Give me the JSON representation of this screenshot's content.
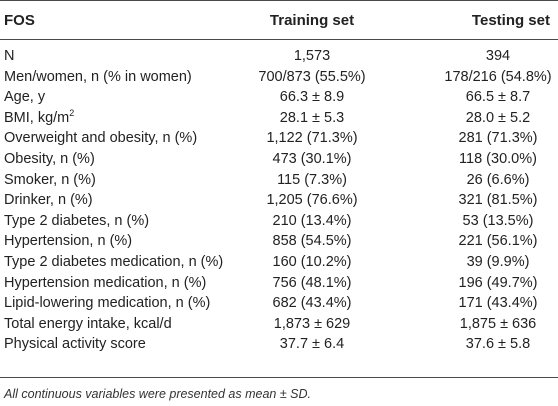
{
  "table": {
    "headers": {
      "label": "FOS",
      "training": "Training set",
      "testing": "Testing set"
    },
    "rows": [
      {
        "label": "N",
        "training": "1,573",
        "testing": "394"
      },
      {
        "label": "Men/women, n (% in women)",
        "training": "700/873 (55.5%)",
        "testing": "178/216 (54.8%)"
      },
      {
        "label": "Age, y",
        "training": "66.3 ± 8.9",
        "testing": "66.5 ± 8.7"
      },
      {
        "label": "BMI, kg/m",
        "label_sup": "2",
        "training": "28.1 ± 5.3",
        "testing": "28.0 ± 5.2"
      },
      {
        "label": "Overweight and obesity, n (%)",
        "training": "1,122 (71.3%)",
        "testing": "281 (71.3%)"
      },
      {
        "label": "Obesity, n (%)",
        "training": "473 (30.1%)",
        "testing": "118 (30.0%)"
      },
      {
        "label": "Smoker, n (%)",
        "training": "115 (7.3%)",
        "testing": "26 (6.6%)"
      },
      {
        "label": "Drinker, n (%)",
        "training": "1,205 (76.6%)",
        "testing": "321 (81.5%)"
      },
      {
        "label": "Type 2 diabetes, n (%)",
        "training": "210 (13.4%)",
        "testing": "53 (13.5%)"
      },
      {
        "label": "Hypertension, n (%)",
        "training": "858 (54.5%)",
        "testing": "221 (56.1%)"
      },
      {
        "label": "Type 2 diabetes medication, n (%)",
        "training": "160 (10.2%)",
        "testing": "39 (9.9%)"
      },
      {
        "label": "Hypertension medication, n (%)",
        "training": "756 (48.1%)",
        "testing": "196 (49.7%)"
      },
      {
        "label": "Lipid-lowering medication, n (%)",
        "training": "682 (43.4%)",
        "testing": "171 (43.4%)"
      },
      {
        "label": "Total energy intake, kcal/d",
        "training": "1,873 ± 629",
        "testing": "1,875 ± 636"
      },
      {
        "label": "Physical activity score",
        "training": "37.7 ± 6.4",
        "testing": "37.6 ± 5.8"
      }
    ],
    "footnote": "All continuous variables were presented as mean ± SD."
  }
}
